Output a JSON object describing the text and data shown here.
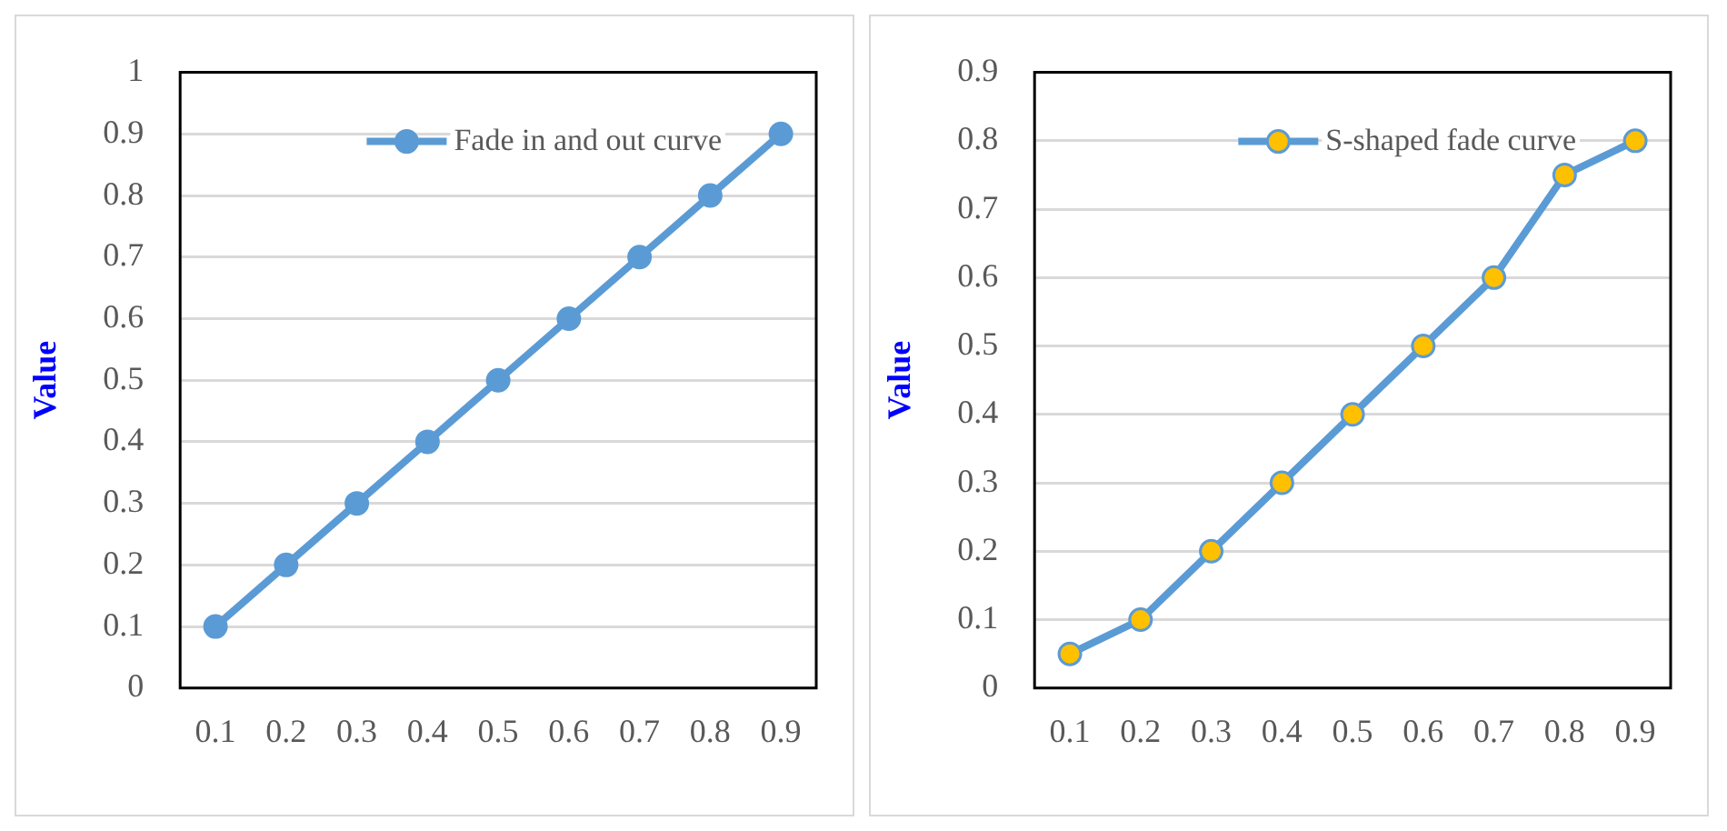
{
  "chart_data": [
    {
      "type": "line",
      "ylabel": "Value",
      "categories": [
        "0.1",
        "0.2",
        "0.3",
        "0.4",
        "0.5",
        "0.6",
        "0.7",
        "0.8",
        "0.9"
      ],
      "ylim": [
        0,
        1
      ],
      "yticks": [
        0,
        0.1,
        0.2,
        0.3,
        0.4,
        0.5,
        0.6,
        0.7,
        0.8,
        0.9,
        1
      ],
      "grid": "y",
      "legend": "top right",
      "marker": "circle",
      "series": [
        {
          "name": "Fade in and out curve",
          "color": "#5b9bd5",
          "values": [
            0.1,
            0.2,
            0.3,
            0.4,
            0.5,
            0.6,
            0.7,
            0.8,
            0.9
          ]
        }
      ]
    },
    {
      "type": "line",
      "ylabel": "Value",
      "categories": [
        "0.1",
        "0.2",
        "0.3",
        "0.4",
        "0.5",
        "0.6",
        "0.7",
        "0.8",
        "0.9"
      ],
      "ylim": [
        0,
        0.9
      ],
      "yticks": [
        0,
        0.1,
        0.2,
        0.3,
        0.4,
        0.5,
        0.6,
        0.7,
        0.8,
        0.9
      ],
      "grid": "y",
      "legend": "top right",
      "marker": "circle",
      "series": [
        {
          "name": "S-shaped fade curve",
          "color": "#5b9bd5",
          "colors": [
            "#ffc000",
            "#ffc000",
            "#ffc000",
            "#ffc000",
            "#ffc000",
            "#ffc000",
            "#ffc000",
            "#ffc000",
            "#ffc000"
          ],
          "values": [
            0.05,
            0.1,
            0.2,
            0.3,
            0.4,
            0.5,
            0.6,
            0.75,
            0.8
          ]
        }
      ]
    }
  ]
}
